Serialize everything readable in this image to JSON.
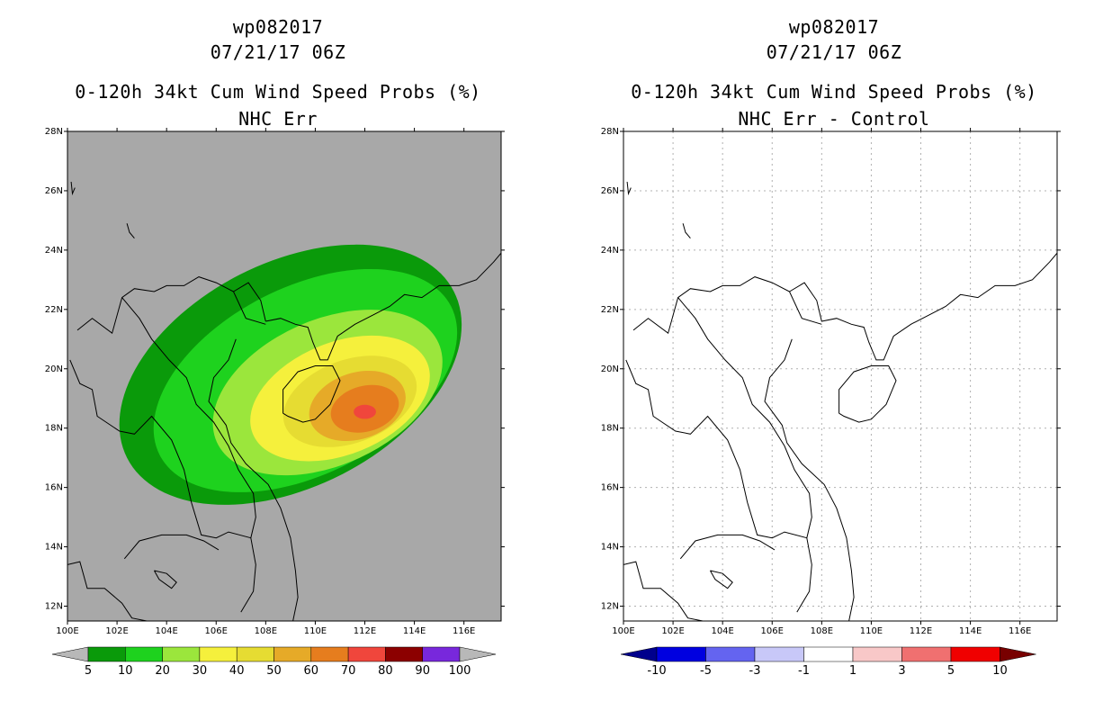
{
  "colors": {
    "land_bg": "#a8a8a8",
    "coast": "#000000",
    "grid": "#b0b0b0"
  },
  "panels": [
    {
      "storm_id": "wp082017",
      "datetime": "07/21/17 06Z",
      "product": "0-120h 34kt Cum Wind Speed Probs (%)",
      "subtitle": "NHC Err"
    },
    {
      "storm_id": "wp082017",
      "datetime": "07/21/17 06Z",
      "product": "0-120h 34kt Cum Wind Speed Probs (%)",
      "subtitle": "NHC Err - Control"
    }
  ],
  "chart_data": [
    {
      "type": "heatmap",
      "title": "0-120h 34kt Cum Wind Speed Probs (%)",
      "subtitle": "NHC Err",
      "xlim": [
        100,
        117.5
      ],
      "ylim": [
        11.5,
        28
      ],
      "x_ticks": [
        "100E",
        "102E",
        "104E",
        "106E",
        "108E",
        "110E",
        "112E",
        "114E",
        "116E"
      ],
      "y_ticks": [
        "12N",
        "14N",
        "16N",
        "18N",
        "20N",
        "22N",
        "24N",
        "26N",
        "28N"
      ],
      "grid": false,
      "colorbar": {
        "labels": [
          "5",
          "10",
          "20",
          "30",
          "40",
          "50",
          "60",
          "70",
          "80",
          "90",
          "100"
        ],
        "colors": [
          "#0a9a0a",
          "#1ed21e",
          "#9be63c",
          "#f5f03c",
          "#e6dc32",
          "#e6aa28",
          "#e67d1e",
          "#f0463c",
          "#8c0000",
          "#7828dc"
        ],
        "ends": [
          "#b8b8b8",
          "#b8b8b8"
        ]
      },
      "contours": [
        {
          "level": 5,
          "center": [
            109.0,
            19.8
          ],
          "rx": 7.4,
          "ry": 2.7,
          "angle": -27
        },
        {
          "level": 10,
          "center": [
            109.6,
            19.6
          ],
          "rx": 6.6,
          "ry": 2.25,
          "angle": -27
        },
        {
          "level": 20,
          "center": [
            110.5,
            19.2
          ],
          "rx": 4.9,
          "ry": 1.75,
          "angle": -24
        },
        {
          "level": 30,
          "center": [
            111.0,
            19.0
          ],
          "rx": 3.8,
          "ry": 1.35,
          "angle": -22
        },
        {
          "level": 40,
          "center": [
            111.4,
            18.9
          ],
          "rx": 2.8,
          "ry": 1.0,
          "angle": -20
        },
        {
          "level": 50,
          "center": [
            111.7,
            18.75
          ],
          "rx": 2.0,
          "ry": 0.8,
          "angle": -18
        },
        {
          "level": 60,
          "center": [
            112.0,
            18.65
          ],
          "rx": 1.4,
          "ry": 0.55,
          "angle": -15
        },
        {
          "level": 70,
          "center": [
            112.0,
            18.55
          ],
          "rx": 0.45,
          "ry": 0.17,
          "angle": 0
        }
      ]
    },
    {
      "type": "heatmap",
      "title": "0-120h 34kt Cum Wind Speed Probs (%)",
      "subtitle": "NHC Err - Control",
      "xlim": [
        100,
        117.5
      ],
      "ylim": [
        11.5,
        28
      ],
      "x_ticks": [
        "100E",
        "102E",
        "104E",
        "106E",
        "108E",
        "110E",
        "112E",
        "114E",
        "116E"
      ],
      "y_ticks": [
        "12N",
        "14N",
        "16N",
        "18N",
        "20N",
        "22N",
        "24N",
        "26N",
        "28N"
      ],
      "grid": true,
      "colorbar": {
        "labels": [
          "-10",
          "-5",
          "-3",
          "-1",
          "1",
          "3",
          "5",
          "10"
        ],
        "colors": [
          "#0000e0",
          "#6464f0",
          "#c8c8f8",
          "#ffffff",
          "#f8c8c8",
          "#f07070",
          "#f00000"
        ],
        "ends": [
          "#00008c",
          "#780000"
        ]
      },
      "contours": []
    }
  ]
}
